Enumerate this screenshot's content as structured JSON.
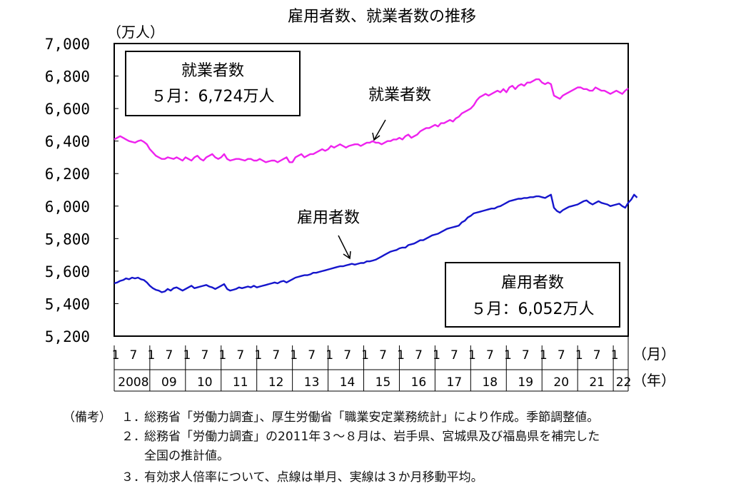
{
  "chart_data": {
    "type": "line",
    "title": "雇用者数、就業者数の推移",
    "y_unit_label": "（万人）",
    "x_unit_month": "（月）",
    "x_unit_year": "（年）",
    "ylim": [
      5200,
      7000
    ],
    "yticks": [
      "7,000",
      "6,800",
      "6,600",
      "6,400",
      "6,200",
      "6,000",
      "5,800",
      "5,600",
      "5,400",
      "5,200"
    ],
    "ytick_values": [
      7000,
      6800,
      6600,
      6400,
      6200,
      6000,
      5800,
      5600,
      5400,
      5200
    ],
    "x_start": "2008-01",
    "month_tick_labels": [
      "1",
      "7"
    ],
    "year_labels": [
      "2008",
      "09",
      "10",
      "11",
      "12",
      "13",
      "14",
      "15",
      "16",
      "17",
      "18",
      "19",
      "20",
      "21",
      "22"
    ],
    "grid": false,
    "series": [
      {
        "name": "就業者数",
        "color": "#ee22ee",
        "values": [
          6410,
          6420,
          6430,
          6420,
          6410,
          6400,
          6395,
          6390,
          6400,
          6405,
          6395,
          6380,
          6350,
          6330,
          6310,
          6300,
          6290,
          6290,
          6300,
          6295,
          6290,
          6300,
          6290,
          6280,
          6300,
          6290,
          6280,
          6300,
          6310,
          6290,
          6280,
          6300,
          6310,
          6320,
          6300,
          6290,
          6300,
          6320,
          6290,
          6280,
          6285,
          6290,
          6290,
          6285,
          6280,
          6290,
          6290,
          6280,
          6280,
          6290,
          6280,
          6270,
          6275,
          6280,
          6280,
          6270,
          6280,
          6290,
          6300,
          6270,
          6270,
          6300,
          6310,
          6320,
          6300,
          6310,
          6320,
          6320,
          6330,
          6340,
          6350,
          6340,
          6350,
          6370,
          6360,
          6370,
          6380,
          6370,
          6360,
          6370,
          6375,
          6380,
          6380,
          6370,
          6380,
          6390,
          6390,
          6400,
          6390,
          6390,
          6380,
          6390,
          6400,
          6400,
          6410,
          6410,
          6420,
          6410,
          6430,
          6440,
          6420,
          6430,
          6440,
          6460,
          6470,
          6480,
          6480,
          6490,
          6500,
          6490,
          6510,
          6510,
          6520,
          6530,
          6520,
          6540,
          6550,
          6570,
          6580,
          6590,
          6600,
          6620,
          6650,
          6670,
          6680,
          6690,
          6680,
          6690,
          6700,
          6710,
          6700,
          6720,
          6700,
          6730,
          6740,
          6720,
          6740,
          6750,
          6740,
          6760,
          6760,
          6770,
          6780,
          6780,
          6760,
          6750,
          6760,
          6750,
          6680,
          6670,
          6660,
          6680,
          6690,
          6700,
          6710,
          6720,
          6730,
          6730,
          6720,
          6720,
          6710,
          6710,
          6730,
          6720,
          6710,
          6710,
          6700,
          6690,
          6700,
          6710,
          6700,
          6690,
          6710,
          6724
        ],
        "callout": {
          "label": "就業者数",
          "value_text": "５月：6,724万人"
        }
      },
      {
        "name": "雇用者数",
        "color": "#1515cc",
        "values": [
          5525,
          5530,
          5540,
          5545,
          5555,
          5550,
          5560,
          5555,
          5560,
          5550,
          5545,
          5530,
          5510,
          5495,
          5485,
          5480,
          5470,
          5475,
          5490,
          5480,
          5495,
          5500,
          5490,
          5480,
          5490,
          5500,
          5510,
          5495,
          5500,
          5505,
          5510,
          5515,
          5505,
          5500,
          5490,
          5500,
          5510,
          5520,
          5490,
          5480,
          5485,
          5490,
          5500,
          5495,
          5500,
          5505,
          5500,
          5510,
          5500,
          5505,
          5510,
          5515,
          5520,
          5525,
          5530,
          5525,
          5535,
          5540,
          5530,
          5540,
          5550,
          5560,
          5565,
          5570,
          5575,
          5575,
          5580,
          5590,
          5590,
          5595,
          5600,
          5605,
          5610,
          5615,
          5620,
          5625,
          5630,
          5630,
          5635,
          5640,
          5645,
          5640,
          5645,
          5650,
          5650,
          5660,
          5660,
          5665,
          5670,
          5680,
          5690,
          5700,
          5710,
          5720,
          5725,
          5730,
          5740,
          5745,
          5745,
          5760,
          5765,
          5770,
          5780,
          5790,
          5790,
          5800,
          5810,
          5820,
          5825,
          5830,
          5840,
          5850,
          5860,
          5865,
          5870,
          5875,
          5880,
          5900,
          5910,
          5930,
          5940,
          5955,
          5960,
          5965,
          5970,
          5975,
          5980,
          5985,
          5985,
          5995,
          6000,
          6010,
          6020,
          6030,
          6035,
          6040,
          6045,
          6045,
          6050,
          6050,
          6055,
          6055,
          6060,
          6060,
          6055,
          6050,
          6060,
          6070,
          5990,
          5970,
          5960,
          5975,
          5985,
          5995,
          6000,
          6005,
          6010,
          6020,
          6030,
          6035,
          6020,
          6010,
          6020,
          6030,
          6020,
          6015,
          6010,
          6000,
          6005,
          6010,
          6015,
          6000,
          5990,
          6020,
          6040,
          6070,
          6052
        ],
        "callout": {
          "label": "雇用者数",
          "value_text": "５月：6,052万人"
        }
      }
    ],
    "annotations": [
      {
        "text": "就業者数",
        "target_series": 0
      },
      {
        "text": "雇用者数",
        "target_series": 1
      }
    ]
  },
  "notes": {
    "prefix": "（備考）",
    "items": [
      {
        "num": "１．",
        "text": "総務省「労働力調査」、厚生労働省「職業安定業務統計」により作成。季節調整値。"
      },
      {
        "num": "２．",
        "text": "総務省「労働力調査」の2011年３～８月は、岩手県、宮城県及び福島県を補完した",
        "continuation": "全国の推計値。"
      },
      {
        "num": "３．",
        "text": "有効求人倍率について、点線は単月、実線は３か月移動平均。"
      }
    ]
  }
}
